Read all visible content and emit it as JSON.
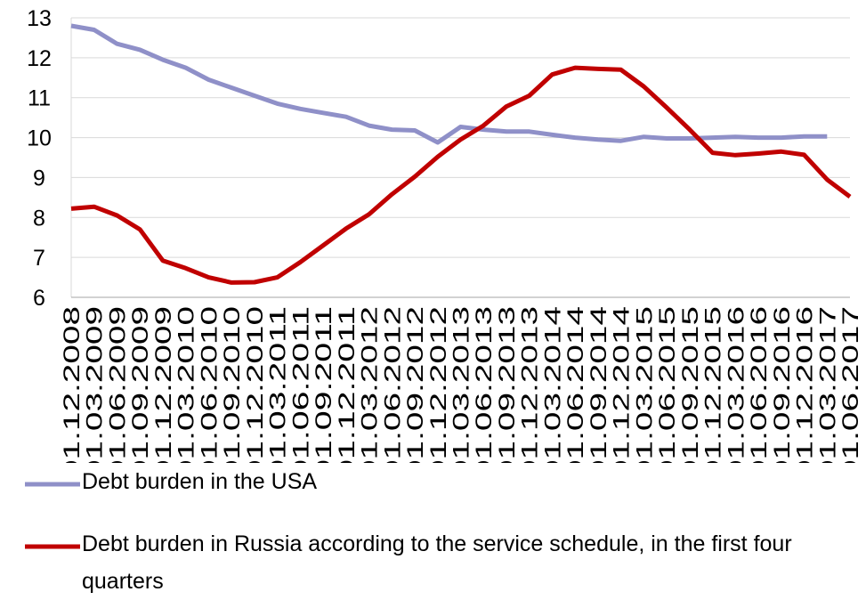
{
  "chart_data": {
    "type": "line",
    "categories": [
      "01.12.2008",
      "01.03.2009",
      "01.06.2009",
      "01.09.2009",
      "01.12.2009",
      "01.03.2010",
      "01.06.2010",
      "01.09.2010",
      "01.12.2010",
      "01.03.2011",
      "01.06.2011",
      "01.09.2011",
      "01.12.2011",
      "01.03.2012",
      "01.06.2012",
      "01.09.2012",
      "01.12.2012",
      "01.03.2013",
      "01.06.2013",
      "01.09.2013",
      "01.12.2013",
      "01.03.2014",
      "01.06.2014",
      "01.09.2014",
      "01.12.2014",
      "01.03.2015",
      "01.06.2015",
      "01.09.2015",
      "01.12.2015",
      "01.03.2016",
      "01.06.2016",
      "01.09.2016",
      "01.12.2016",
      "01.03.2017",
      "01.06.2017"
    ],
    "series": [
      {
        "name": "Debt burden in the USA",
        "color": "#8f90c8",
        "values": [
          12.8,
          12.7,
          12.35,
          12.2,
          11.95,
          11.75,
          11.45,
          11.25,
          11.05,
          10.85,
          10.72,
          10.62,
          10.52,
          10.3,
          10.2,
          10.18,
          9.88,
          10.27,
          10.2,
          10.15,
          10.15,
          10.07,
          10.0,
          9.95,
          9.92,
          10.02,
          9.98,
          9.98,
          10.0,
          10.02,
          10.0,
          10.0,
          10.03,
          10.03,
          null
        ]
      },
      {
        "name": "Debt burden in Russia according to the service schedule, in the first four quarters",
        "color": "#c00000",
        "values": [
          8.22,
          8.27,
          8.05,
          7.7,
          6.92,
          6.73,
          6.5,
          6.37,
          6.38,
          6.5,
          6.88,
          7.3,
          7.72,
          8.08,
          8.58,
          9.02,
          9.52,
          9.95,
          10.3,
          10.78,
          11.05,
          11.58,
          11.75,
          11.72,
          11.7,
          11.28,
          10.75,
          10.2,
          9.62,
          9.56,
          9.6,
          9.65,
          9.57,
          8.95,
          8.52
        ]
      }
    ],
    "ylim": [
      6,
      13
    ],
    "yticks": [
      6,
      7,
      8,
      9,
      10,
      11,
      12,
      13
    ],
    "grid": true
  }
}
